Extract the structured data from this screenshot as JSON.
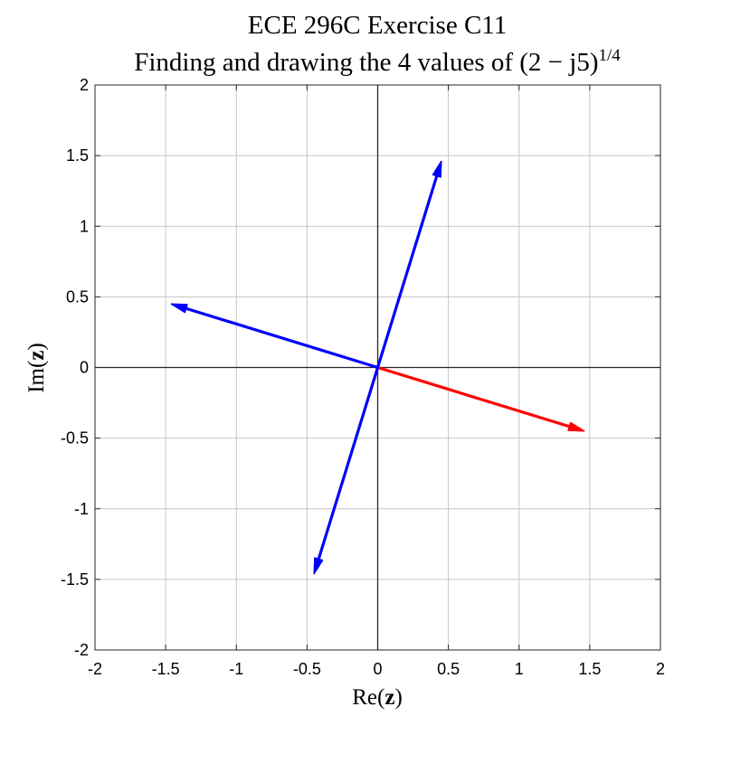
{
  "chart_data": {
    "type": "line",
    "title_line1": "ECE 296C Exercise C11",
    "title_line2": "Finding and drawing the 4 values of (2 − j5)",
    "title_exponent": "1/4",
    "xlabel_prefix": "Re(",
    "xlabel_bold": "z",
    "xlabel_suffix": ")",
    "ylabel_prefix": "Im(",
    "ylabel_bold": "z",
    "ylabel_suffix": ")",
    "xlim": [
      -2,
      2
    ],
    "ylim": [
      -2,
      2
    ],
    "xticks": [
      -2,
      -1.5,
      -1,
      -0.5,
      0,
      0.5,
      1,
      1.5,
      2
    ],
    "yticks": [
      -2,
      -1.5,
      -1,
      -0.5,
      0,
      0.5,
      1,
      1.5,
      2
    ],
    "xtick_labels": [
      "-2",
      "-1.5",
      "-1",
      "-0.5",
      "0",
      "0.5",
      "1",
      "1.5",
      "2"
    ],
    "ytick_labels": [
      "-2",
      "-1.5",
      "-1",
      "-0.5",
      "0",
      "0.5",
      "1",
      "1.5",
      "2"
    ],
    "grid": true,
    "vectors": [
      {
        "x": 1.46,
        "y": -0.45,
        "color": "#ff0000"
      },
      {
        "x": 0.45,
        "y": 1.46,
        "color": "#0000ff"
      },
      {
        "x": -1.46,
        "y": 0.45,
        "color": "#0000ff"
      },
      {
        "x": -0.45,
        "y": -1.46,
        "color": "#0000ff"
      }
    ]
  }
}
